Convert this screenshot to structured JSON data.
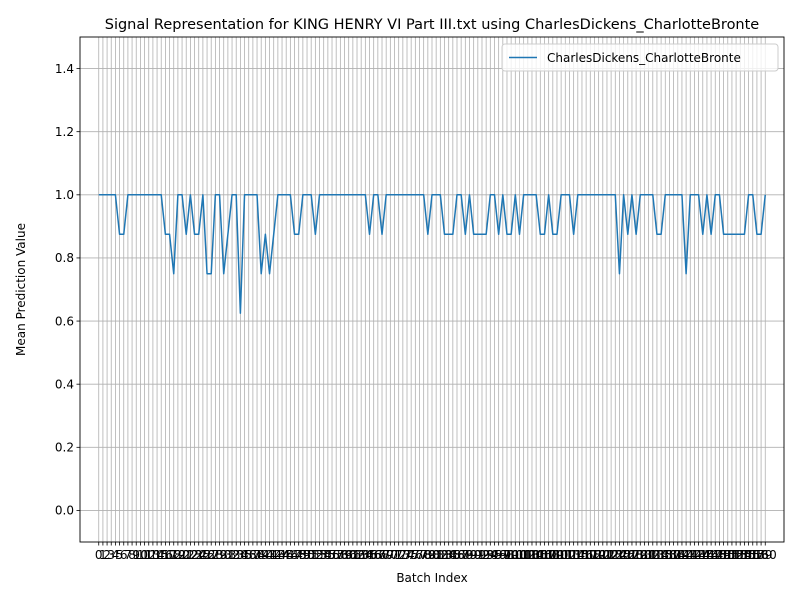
{
  "chart_data": {
    "type": "line",
    "title": "Signal Representation for KING HENRY VI Part III.txt using CharlesDickens_CharlotteBronte",
    "xlabel": "Batch Index",
    "ylabel": "Mean Prediction Value",
    "xlim": [
      -4.5,
      164.5
    ],
    "ylim": [
      -0.1,
      1.5
    ],
    "yticks": [
      0.0,
      0.2,
      0.4,
      0.6,
      0.8,
      1.0,
      1.2,
      1.4
    ],
    "grid": true,
    "legend": "top-right",
    "series": [
      {
        "name": "CharlesDickens_CharlotteBronte",
        "color": "#1f77b4",
        "x": [
          0,
          1,
          2,
          3,
          4,
          5,
          6,
          7,
          8,
          9,
          10,
          11,
          12,
          13,
          14,
          15,
          16,
          17,
          18,
          19,
          20,
          21,
          22,
          23,
          24,
          25,
          26,
          27,
          28,
          29,
          30,
          31,
          32,
          33,
          34,
          35,
          36,
          37,
          38,
          39,
          40,
          41,
          42,
          43,
          44,
          45,
          46,
          47,
          48,
          49,
          50,
          51,
          52,
          53,
          54,
          55,
          56,
          57,
          58,
          59,
          60,
          61,
          62,
          63,
          64,
          65,
          66,
          67,
          68,
          69,
          70,
          71,
          72,
          73,
          74,
          75,
          76,
          77,
          78,
          79,
          80,
          81,
          82,
          83,
          84,
          85,
          86,
          87,
          88,
          89,
          90,
          91,
          92,
          93,
          94,
          95,
          96,
          97,
          98,
          99,
          100,
          101,
          102,
          103,
          104,
          105,
          106,
          107,
          108,
          109,
          110,
          111,
          112,
          113,
          114,
          115,
          116,
          117,
          118,
          119,
          120,
          121,
          122,
          123,
          124,
          125,
          126,
          127,
          128,
          129,
          130,
          131,
          132,
          133,
          134,
          135,
          136,
          137,
          138,
          139,
          140,
          141,
          142,
          143,
          144,
          145,
          146,
          147,
          148,
          149,
          150,
          151,
          152,
          153,
          154,
          155,
          156,
          157,
          158,
          159,
          160
        ],
        "values": [
          1.0,
          1.0,
          1.0,
          1.0,
          1.0,
          0.875,
          0.875,
          1.0,
          1.0,
          1.0,
          1.0,
          1.0,
          1.0,
          1.0,
          1.0,
          1.0,
          0.875,
          0.875,
          0.75,
          1.0,
          1.0,
          0.875,
          1.0,
          0.875,
          0.875,
          1.0,
          0.75,
          0.75,
          1.0,
          1.0,
          0.75,
          0.875,
          1.0,
          1.0,
          0.625,
          1.0,
          1.0,
          1.0,
          1.0,
          0.75,
          0.875,
          0.75,
          0.875,
          1.0,
          1.0,
          1.0,
          1.0,
          0.875,
          0.875,
          1.0,
          1.0,
          1.0,
          0.875,
          1.0,
          1.0,
          1.0,
          1.0,
          1.0,
          1.0,
          1.0,
          1.0,
          1.0,
          1.0,
          1.0,
          1.0,
          0.875,
          1.0,
          1.0,
          0.875,
          1.0,
          1.0,
          1.0,
          1.0,
          1.0,
          1.0,
          1.0,
          1.0,
          1.0,
          1.0,
          0.875,
          1.0,
          1.0,
          1.0,
          0.875,
          0.875,
          0.875,
          1.0,
          1.0,
          0.875,
          1.0,
          0.875,
          0.875,
          0.875,
          0.875,
          1.0,
          1.0,
          0.875,
          1.0,
          0.875,
          0.875,
          1.0,
          0.875,
          1.0,
          1.0,
          1.0,
          1.0,
          0.875,
          0.875,
          1.0,
          0.875,
          0.875,
          1.0,
          1.0,
          1.0,
          0.875,
          1.0,
          1.0,
          1.0,
          1.0,
          1.0,
          1.0,
          1.0,
          1.0,
          1.0,
          1.0,
          0.75,
          1.0,
          0.875,
          1.0,
          0.875,
          1.0,
          1.0,
          1.0,
          1.0,
          0.875,
          0.875,
          1.0,
          1.0,
          1.0,
          1.0,
          1.0,
          0.75,
          1.0,
          1.0,
          1.0,
          0.875,
          1.0,
          0.875,
          1.0,
          1.0,
          0.875,
          0.875,
          0.875,
          0.875,
          0.875,
          0.875,
          1.0,
          1.0,
          0.875,
          0.875,
          1.0
        ]
      }
    ]
  }
}
